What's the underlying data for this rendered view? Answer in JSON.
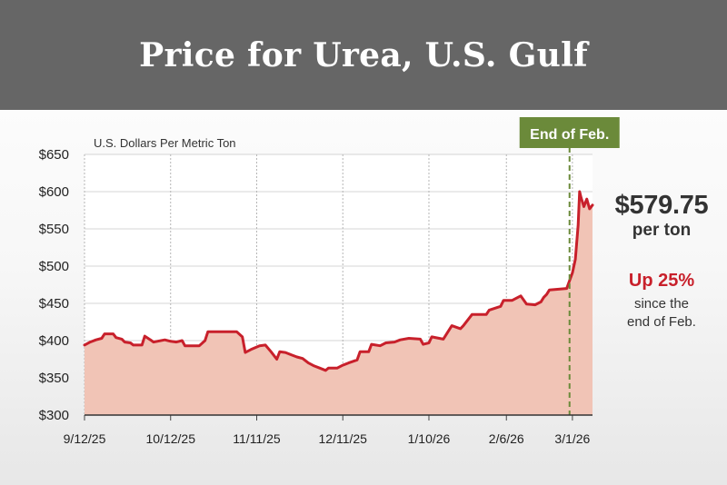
{
  "header": {
    "title": "Price for Urea, U.S. Gulf"
  },
  "callout": {
    "price": "$579.75",
    "unit": "per ton",
    "change": "Up 25%",
    "note_line1": "since the",
    "note_line2": "end of Feb."
  },
  "marker": {
    "label": "End of Feb.",
    "date": "2026-02-28"
  },
  "colors": {
    "banner": "#666666",
    "line": "#c8202b",
    "fill": "#f1c4b6",
    "marker": "#6b8a3a",
    "change_text": "#c8202b"
  },
  "chart_data": {
    "type": "area",
    "title": "Price for Urea, U.S. Gulf",
    "ylabel": "U.S. Dollars Per Metric Ton",
    "xlabel": "",
    "ylim": [
      300,
      650
    ],
    "yticks": [
      300,
      350,
      400,
      450,
      500,
      550,
      600,
      650
    ],
    "ytick_labels": [
      "$300",
      "$350",
      "$400",
      "$450",
      "$500",
      "$550",
      "$600",
      "$650"
    ],
    "xticks": [
      "2025-09-12",
      "2025-10-12",
      "2025-11-11",
      "2025-12-11",
      "2026-01-10",
      "2026-02-06",
      "2026-03-01"
    ],
    "xtick_labels": [
      "9/12/25",
      "10/12/25",
      "11/11/25",
      "12/11/25",
      "1/10/26",
      "2/6/26",
      "3/1/26"
    ],
    "xlim": [
      "2025-09-12",
      "2026-03-08"
    ],
    "grid": "both",
    "series": [
      {
        "values": [
          [
            "2025-09-12",
            394
          ],
          [
            "2025-09-14",
            398
          ],
          [
            "2025-09-16",
            401
          ],
          [
            "2025-09-18",
            403
          ],
          [
            "2025-09-19",
            409
          ],
          [
            "2025-09-22",
            409
          ],
          [
            "2025-09-23",
            404
          ],
          [
            "2025-09-25",
            402
          ],
          [
            "2025-09-26",
            398
          ],
          [
            "2025-09-28",
            397
          ],
          [
            "2025-09-29",
            394
          ],
          [
            "2025-10-02",
            394
          ],
          [
            "2025-10-03",
            406
          ],
          [
            "2025-10-05",
            401
          ],
          [
            "2025-10-06",
            398
          ],
          [
            "2025-10-10",
            401
          ],
          [
            "2025-10-12",
            399
          ],
          [
            "2025-10-14",
            398
          ],
          [
            "2025-10-16",
            400
          ],
          [
            "2025-10-17",
            393
          ],
          [
            "2025-10-22",
            393
          ],
          [
            "2025-10-24",
            400
          ],
          [
            "2025-10-25",
            412
          ],
          [
            "2025-11-04",
            412
          ],
          [
            "2025-11-06",
            405
          ],
          [
            "2025-11-07",
            384
          ],
          [
            "2025-11-09",
            388
          ],
          [
            "2025-11-12",
            393
          ],
          [
            "2025-11-14",
            394
          ],
          [
            "2025-11-16",
            385
          ],
          [
            "2025-11-18",
            375
          ],
          [
            "2025-11-19",
            385
          ],
          [
            "2025-11-21",
            384
          ],
          [
            "2025-11-23",
            381
          ],
          [
            "2025-11-25",
            378
          ],
          [
            "2025-11-27",
            376
          ],
          [
            "2025-11-29",
            370
          ],
          [
            "2025-12-01",
            366
          ],
          [
            "2025-12-03",
            363
          ],
          [
            "2025-12-05",
            360
          ],
          [
            "2025-12-06",
            363
          ],
          [
            "2025-12-09",
            363
          ],
          [
            "2025-12-11",
            367
          ],
          [
            "2025-12-13",
            370
          ],
          [
            "2025-12-16",
            374
          ],
          [
            "2025-12-17",
            385
          ],
          [
            "2025-12-20",
            385
          ],
          [
            "2025-12-21",
            395
          ],
          [
            "2025-12-24",
            393
          ],
          [
            "2025-12-26",
            397
          ],
          [
            "2025-12-29",
            398
          ],
          [
            "2025-12-31",
            401
          ],
          [
            "2026-01-03",
            403
          ],
          [
            "2026-01-07",
            402
          ],
          [
            "2026-01-08",
            395
          ],
          [
            "2026-01-10",
            397
          ],
          [
            "2026-01-11",
            405
          ],
          [
            "2026-01-15",
            402
          ],
          [
            "2026-01-18",
            420
          ],
          [
            "2026-01-21",
            416
          ],
          [
            "2026-01-22",
            420
          ],
          [
            "2026-01-25",
            435
          ],
          [
            "2026-01-30",
            435
          ],
          [
            "2026-01-31",
            441
          ],
          [
            "2026-02-04",
            446
          ],
          [
            "2026-02-05",
            454
          ],
          [
            "2026-02-08",
            454
          ],
          [
            "2026-02-11",
            460
          ],
          [
            "2026-02-13",
            449
          ],
          [
            "2026-02-16",
            448
          ],
          [
            "2026-02-18",
            452
          ],
          [
            "2026-02-19",
            458
          ],
          [
            "2026-02-20",
            462
          ],
          [
            "2026-02-21",
            468
          ],
          [
            "2026-02-27",
            470
          ],
          [
            "2026-03-01",
            491
          ],
          [
            "2026-03-02",
            509
          ],
          [
            "2026-03-03",
            555
          ],
          [
            "2026-03-03T12:00",
            600
          ],
          [
            "2026-03-04",
            592
          ],
          [
            "2026-03-05",
            580
          ],
          [
            "2026-03-06",
            590
          ],
          [
            "2026-03-07",
            577
          ],
          [
            "2026-03-08",
            582
          ]
        ]
      }
    ]
  }
}
